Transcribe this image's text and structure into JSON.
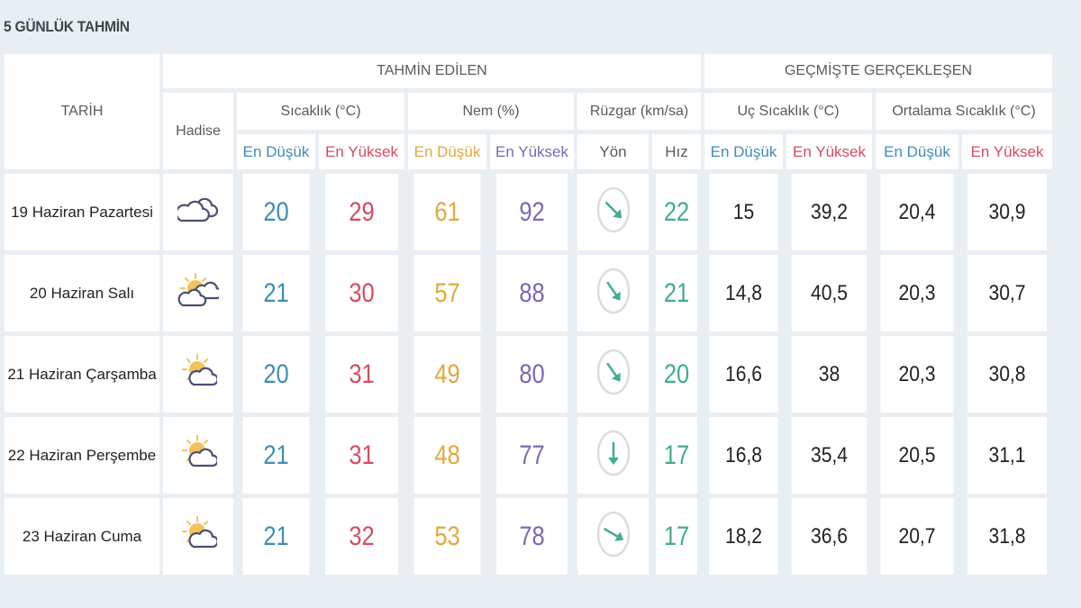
{
  "section_title": "5 GÜNLÜK TAHMİN",
  "headers": {
    "date": "TARİH",
    "forecast": "TAHMİN EDİLEN",
    "history": "GEÇMİŞTE GERÇEKLEŞEN",
    "event": "Hadise",
    "temperature": "Sıcaklık (°C)",
    "humidity": "Nem (%)",
    "wind": "Rüzgar (km/sa)",
    "extreme_temp": "Uç Sıcaklık (°C)",
    "avg_temp": "Ortalama Sıcaklık (°C)",
    "min": "En Düşük",
    "max": "En Yüksek",
    "direction": "Yön",
    "speed": "Hız"
  },
  "colors": {
    "min": "#3f8db5",
    "max": "#d84a5e",
    "humidity_min": "#e3a73a",
    "humidity_max": "#7a68b5",
    "wind": "#3fae8a"
  },
  "rows": [
    {
      "date": "19 Haziran Pazartesi",
      "icon": "cloudy-icon",
      "temp_min": "20",
      "temp_max": "29",
      "hum_min": "61",
      "hum_max": "92",
      "wind_dir_deg": 135,
      "wind_speed": "22",
      "ext_min": "15",
      "ext_max": "39,2",
      "avg_min": "20,4",
      "avg_max": "30,9"
    },
    {
      "date": "20 Haziran Salı",
      "icon": "partly-cloudy-two-clouds-icon",
      "temp_min": "21",
      "temp_max": "30",
      "hum_min": "57",
      "hum_max": "88",
      "wind_dir_deg": 145,
      "wind_speed": "21",
      "ext_min": "14,8",
      "ext_max": "40,5",
      "avg_min": "20,3",
      "avg_max": "30,7"
    },
    {
      "date": "21 Haziran Çarşamba",
      "icon": "partly-cloudy-icon",
      "temp_min": "20",
      "temp_max": "31",
      "hum_min": "49",
      "hum_max": "80",
      "wind_dir_deg": 145,
      "wind_speed": "20",
      "ext_min": "16,6",
      "ext_max": "38",
      "avg_min": "20,3",
      "avg_max": "30,8"
    },
    {
      "date": "22 Haziran Perşembe",
      "icon": "partly-cloudy-icon",
      "temp_min": "21",
      "temp_max": "31",
      "hum_min": "48",
      "hum_max": "77",
      "wind_dir_deg": 180,
      "wind_speed": "17",
      "ext_min": "16,8",
      "ext_max": "35,4",
      "avg_min": "20,5",
      "avg_max": "31,1"
    },
    {
      "date": "23 Haziran Cuma",
      "icon": "partly-cloudy-icon",
      "temp_min": "21",
      "temp_max": "32",
      "hum_min": "53",
      "hum_max": "78",
      "wind_dir_deg": 120,
      "wind_speed": "17",
      "ext_min": "18,2",
      "ext_max": "36,6",
      "avg_min": "20,7",
      "avg_max": "31,8"
    }
  ]
}
